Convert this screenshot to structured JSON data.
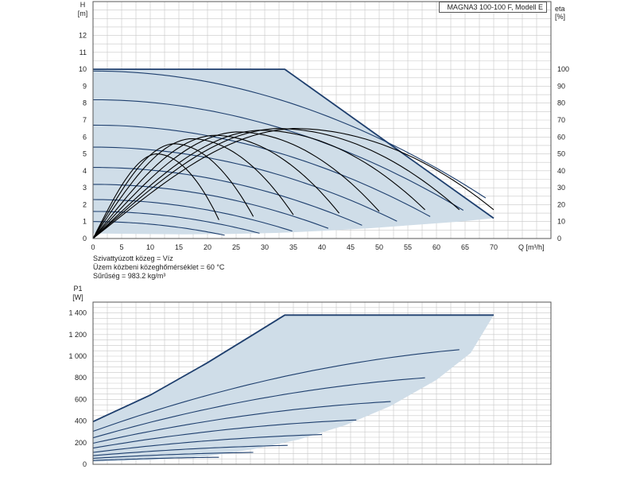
{
  "model_label": "MAGNA3 100-100 F, Modell E",
  "notes": {
    "medium": "Szivattyúzott közeg = Víz",
    "temperature": "Üzem közbeni közeghőmérséklet = 60 °C",
    "density": "Sűrűség = 983.2 kg/m³"
  },
  "colors": {
    "envelope_fill": "#cfdde8",
    "curve": "#1e3f6e",
    "efficiency_curve": "#000000",
    "grid": "#c8c8c8"
  },
  "chart_data": [
    {
      "type": "line",
      "axis_label_x": "Q [m³/h]",
      "axis_label_y_top": "H",
      "axis_label_y_unit": "[m]",
      "axis_label_y2_top": "eta",
      "axis_label_y2_unit": "[%]",
      "xlim": [
        0,
        80
      ],
      "ylim": [
        0,
        14
      ],
      "y2lim": [
        0,
        140
      ],
      "x_ticks": [
        0,
        5,
        10,
        15,
        20,
        25,
        30,
        35,
        40,
        45,
        50,
        55,
        60,
        65,
        70
      ],
      "x_tick_labels": [
        "0",
        "5",
        "10",
        "15",
        "20",
        "25",
        "30",
        "35",
        "40",
        "45",
        "50",
        "55",
        "60",
        "65",
        "70"
      ],
      "y_ticks": [
        0,
        1,
        2,
        3,
        4,
        5,
        6,
        7,
        8,
        9,
        10,
        11,
        12
      ],
      "y_tick_labels": [
        "0",
        "1",
        "2",
        "3",
        "4",
        "5",
        "6",
        "7",
        "8",
        "9",
        "10",
        "11",
        "12"
      ],
      "y2_ticks": [
        0,
        10,
        20,
        30,
        40,
        50,
        60,
        70,
        80,
        90,
        100
      ],
      "y2_tick_labels": [
        "0",
        "10",
        "20",
        "30",
        "40",
        "50",
        "60",
        "70",
        "80",
        "90",
        "100"
      ],
      "grid": true,
      "envelope": {
        "upper": [
          [
            0,
            10
          ],
          [
            33.5,
            10
          ],
          [
            70,
            1.2
          ]
        ],
        "lower": [
          [
            0,
            0.3
          ],
          [
            8,
            0.27
          ],
          [
            16,
            0.25
          ],
          [
            24,
            0.27
          ],
          [
            32,
            0.33
          ],
          [
            40,
            0.45
          ],
          [
            48,
            0.6
          ],
          [
            56,
            0.8
          ],
          [
            64,
            1.0
          ],
          [
            70,
            1.2
          ]
        ]
      },
      "head_curves": [
        {
          "h0": 9.9,
          "qmax": 78.8,
          "x_end": 68.6
        },
        {
          "h0": 8.2,
          "qmax": 72.5,
          "x_end": 64.7
        },
        {
          "h0": 6.7,
          "qmax": 65.6,
          "x_end": 58.9
        },
        {
          "h0": 5.4,
          "qmax": 59.0,
          "x_end": 53.1
        },
        {
          "h0": 4.2,
          "qmax": 52.1,
          "x_end": 47.0
        },
        {
          "h0": 3.2,
          "qmax": 45.6,
          "x_end": 41.1
        },
        {
          "h0": 2.3,
          "qmax": 38.7,
          "x_end": 34.8
        },
        {
          "h0": 1.6,
          "qmax": 32.4,
          "x_end": 29.1
        },
        {
          "h0": 1.0,
          "qmax": 25.6,
          "x_end": 23.0
        }
      ],
      "efficiency_curves": [
        {
          "peak_q": 35,
          "peak_eta": 65,
          "end_q": 70,
          "end_eta": 17
        },
        {
          "peak_q": 32,
          "peak_eta": 65,
          "end_q": 64,
          "end_eta": 17
        },
        {
          "peak_q": 29,
          "peak_eta": 64,
          "end_q": 58,
          "end_eta": 17
        },
        {
          "peak_q": 25,
          "peak_eta": 63,
          "end_q": 50,
          "end_eta": 16
        },
        {
          "peak_q": 21,
          "peak_eta": 61,
          "end_q": 43,
          "end_eta": 15
        },
        {
          "peak_q": 17,
          "peak_eta": 59,
          "end_q": 35,
          "end_eta": 14
        },
        {
          "peak_q": 14,
          "peak_eta": 56,
          "end_q": 28,
          "end_eta": 13
        },
        {
          "peak_q": 11,
          "peak_eta": 50,
          "end_q": 22,
          "end_eta": 11
        }
      ]
    },
    {
      "type": "line",
      "axis_label_y_top": "P1",
      "axis_label_y_unit": "[W]",
      "xlim": [
        0,
        80
      ],
      "ylim": [
        0,
        1500
      ],
      "x_ticks": [
        0,
        5,
        10,
        15,
        20,
        25,
        30,
        35,
        40,
        45,
        50,
        55,
        60,
        65,
        70
      ],
      "y_ticks": [
        0,
        200,
        400,
        600,
        800,
        1000,
        1200,
        1400
      ],
      "y_tick_labels": [
        "0",
        "200",
        "400",
        "600",
        "800",
        "1 000",
        "1 200",
        "1 400"
      ],
      "grid": true,
      "envelope": {
        "upper": [
          [
            0,
            395
          ],
          [
            10,
            640
          ],
          [
            20,
            940
          ],
          [
            28,
            1200
          ],
          [
            33.5,
            1380
          ],
          [
            70,
            1380
          ]
        ],
        "lower": [
          [
            0,
            25
          ],
          [
            10,
            40
          ],
          [
            20,
            75
          ],
          [
            28,
            140
          ],
          [
            36,
            230
          ],
          [
            44,
            360
          ],
          [
            52,
            540
          ],
          [
            60,
            780
          ],
          [
            66,
            1030
          ],
          [
            70,
            1380
          ]
        ]
      },
      "power_curves": [
        {
          "p0": 395,
          "x_knee": 33.5,
          "x_end": 70,
          "p_end": 1380
        },
        {
          "p0": 305,
          "x_end": 64,
          "p_end": 1060
        },
        {
          "p0": 245,
          "x_end": 58,
          "p_end": 800
        },
        {
          "p0": 195,
          "x_end": 52,
          "p_end": 580
        },
        {
          "p0": 150,
          "x_end": 46,
          "p_end": 410
        },
        {
          "p0": 110,
          "x_end": 40,
          "p_end": 275
        },
        {
          "p0": 80,
          "x_end": 34,
          "p_end": 175
        },
        {
          "p0": 55,
          "x_end": 28,
          "p_end": 110
        },
        {
          "p0": 35,
          "x_end": 22,
          "p_end": 65
        }
      ]
    }
  ]
}
